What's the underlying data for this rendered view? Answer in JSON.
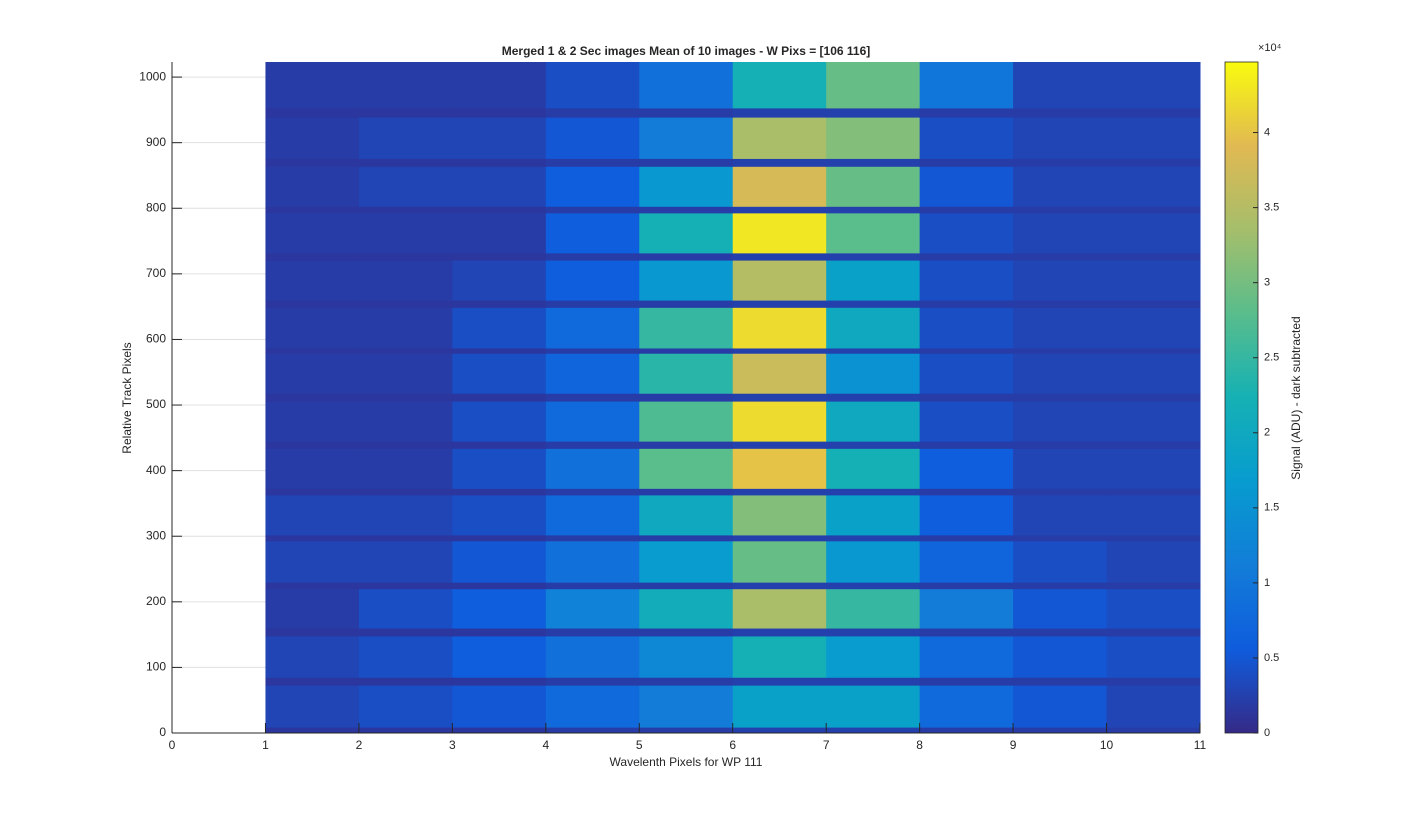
{
  "chart_data": {
    "type": "heatmap",
    "title": "Merged 1 & 2 Sec images  Mean of 10 images - W Pixs = [106  116]",
    "x_label": "Wavelenth Pixels for WP 111",
    "y_label": "Relative Track Pixels",
    "colorbar_label": "Signal (ADU) - dark subtracted",
    "colorbar_scale_label": "×10⁴",
    "colormap": "parula",
    "xlim": [
      0,
      11
    ],
    "xticks": [
      0,
      1,
      2,
      3,
      4,
      5,
      6,
      7,
      8,
      9,
      10,
      11
    ],
    "ylim": [
      0,
      1023
    ],
    "yticks": [
      0,
      100,
      200,
      300,
      400,
      500,
      600,
      700,
      800,
      900,
      1000
    ],
    "grid": true,
    "clim": [
      0,
      4.47
    ],
    "cticks": [
      0,
      0.5,
      1,
      1.5,
      2,
      2.5,
      3,
      3.5,
      4
    ],
    "x_edges": [
      1,
      2,
      3,
      4,
      5,
      6,
      7,
      8,
      9,
      10,
      11
    ],
    "y_edges": [
      0,
      9,
      73,
      85,
      148,
      160,
      220,
      230,
      293,
      302,
      363,
      373,
      434,
      445,
      506,
      518,
      579,
      587,
      649,
      660,
      721,
      732,
      793,
      803,
      864,
      876,
      939,
      953,
      1023
    ],
    "rows": [
      [
        0.15,
        0.15,
        0.15,
        0.2,
        0.2,
        0.25,
        0.25,
        0.2,
        0.2,
        0.2
      ],
      [
        0.3,
        0.4,
        0.5,
        0.8,
        1.1,
        1.8,
        1.8,
        0.8,
        0.5,
        0.3
      ],
      [
        0.15,
        0.15,
        0.15,
        0.2,
        0.2,
        0.25,
        0.25,
        0.2,
        0.2,
        0.2
      ],
      [
        0.3,
        0.4,
        0.6,
        0.9,
        1.3,
        2.2,
        1.7,
        0.8,
        0.5,
        0.4
      ],
      [
        0.15,
        0.15,
        0.15,
        0.2,
        0.2,
        0.25,
        0.25,
        0.2,
        0.2,
        0.2
      ],
      [
        0.2,
        0.4,
        0.6,
        1.2,
        2.1,
        3.4,
        2.5,
        1.1,
        0.5,
        0.4
      ],
      [
        0.15,
        0.15,
        0.15,
        0.2,
        0.2,
        0.25,
        0.25,
        0.2,
        0.2,
        0.2
      ],
      [
        0.3,
        0.3,
        0.5,
        0.9,
        1.7,
        2.9,
        1.6,
        0.7,
        0.4,
        0.3
      ],
      [
        0.15,
        0.15,
        0.15,
        0.2,
        0.2,
        0.25,
        0.25,
        0.2,
        0.2,
        0.2
      ],
      [
        0.3,
        0.3,
        0.4,
        0.8,
        2.0,
        3.1,
        1.8,
        0.6,
        0.3,
        0.3
      ],
      [
        0.15,
        0.15,
        0.15,
        0.2,
        0.2,
        0.25,
        0.25,
        0.2,
        0.2,
        0.2
      ],
      [
        0.2,
        0.2,
        0.4,
        0.9,
        2.8,
        4.0,
        2.2,
        0.6,
        0.3,
        0.3
      ],
      [
        0.15,
        0.15,
        0.15,
        0.2,
        0.2,
        0.25,
        0.25,
        0.2,
        0.2,
        0.2
      ],
      [
        0.2,
        0.2,
        0.4,
        0.8,
        2.7,
        4.2,
        2.0,
        0.4,
        0.3,
        0.3
      ],
      [
        0.15,
        0.15,
        0.15,
        0.2,
        0.2,
        0.25,
        0.25,
        0.2,
        0.2,
        0.2
      ],
      [
        0.2,
        0.2,
        0.4,
        0.7,
        2.4,
        3.7,
        1.5,
        0.4,
        0.3,
        0.3
      ],
      [
        0.15,
        0.15,
        0.15,
        0.2,
        0.2,
        0.25,
        0.25,
        0.2,
        0.2,
        0.2
      ],
      [
        0.2,
        0.2,
        0.4,
        0.8,
        2.5,
        4.2,
        2.0,
        0.4,
        0.3,
        0.3
      ],
      [
        0.15,
        0.15,
        0.15,
        0.2,
        0.2,
        0.25,
        0.25,
        0.2,
        0.2,
        0.2
      ],
      [
        0.2,
        0.2,
        0.3,
        0.6,
        1.6,
        3.5,
        1.8,
        0.4,
        0.3,
        0.3
      ],
      [
        0.15,
        0.15,
        0.15,
        0.2,
        0.2,
        0.25,
        0.25,
        0.2,
        0.2,
        0.2
      ],
      [
        0.2,
        0.2,
        0.2,
        0.6,
        2.2,
        4.3,
        2.8,
        0.4,
        0.3,
        0.3
      ],
      [
        0.15,
        0.15,
        0.15,
        0.2,
        0.2,
        0.25,
        0.25,
        0.2,
        0.2,
        0.2
      ],
      [
        0.2,
        0.3,
        0.3,
        0.6,
        1.6,
        3.8,
        2.9,
        0.5,
        0.3,
        0.3
      ],
      [
        0.15,
        0.15,
        0.15,
        0.2,
        0.2,
        0.25,
        0.25,
        0.2,
        0.2,
        0.2
      ],
      [
        0.2,
        0.3,
        0.3,
        0.5,
        1.1,
        3.4,
        3.1,
        0.4,
        0.3,
        0.3
      ],
      [
        0.15,
        0.15,
        0.15,
        0.2,
        0.2,
        0.25,
        0.25,
        0.2,
        0.2,
        0.2
      ],
      [
        0.2,
        0.2,
        0.2,
        0.4,
        0.9,
        2.2,
        2.9,
        1.0,
        0.3,
        0.3
      ]
    ]
  }
}
